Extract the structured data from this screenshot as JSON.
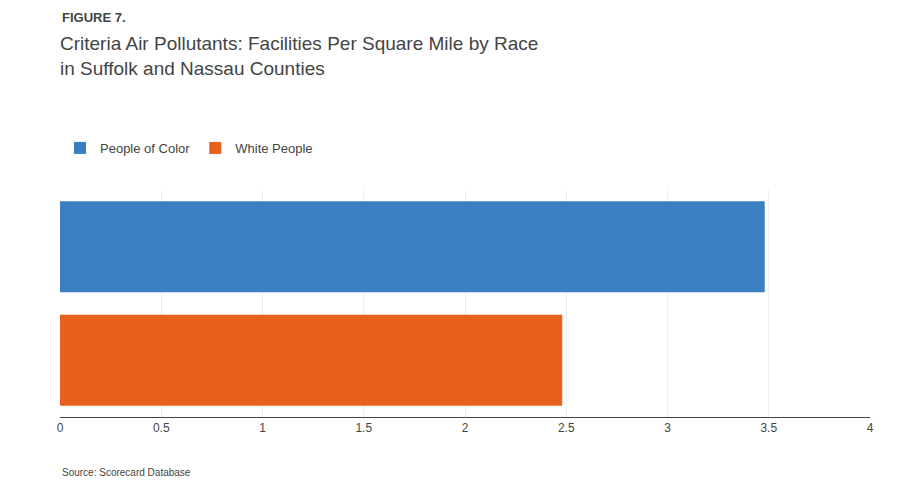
{
  "chart_data": {
    "type": "bar",
    "orientation": "horizontal",
    "title": "Criteria Air Pollutants: Facilities Per Square Mile by Race\nin Suffolk and Nassau Counties",
    "annotations": [
      "FIGURE 7.",
      "Source: Scorecard Database"
    ],
    "categories": [
      "People of Color",
      "White People"
    ],
    "values": [
      3.48,
      2.48
    ],
    "colors": [
      "#3a7fc1",
      "#e8601c"
    ],
    "xlim": [
      0,
      4
    ],
    "xticks": [
      0,
      0.5,
      1,
      1.5,
      2,
      2.5,
      3,
      3.5,
      4
    ],
    "grid": true,
    "legend": "top",
    "tick_labels": "x"
  }
}
